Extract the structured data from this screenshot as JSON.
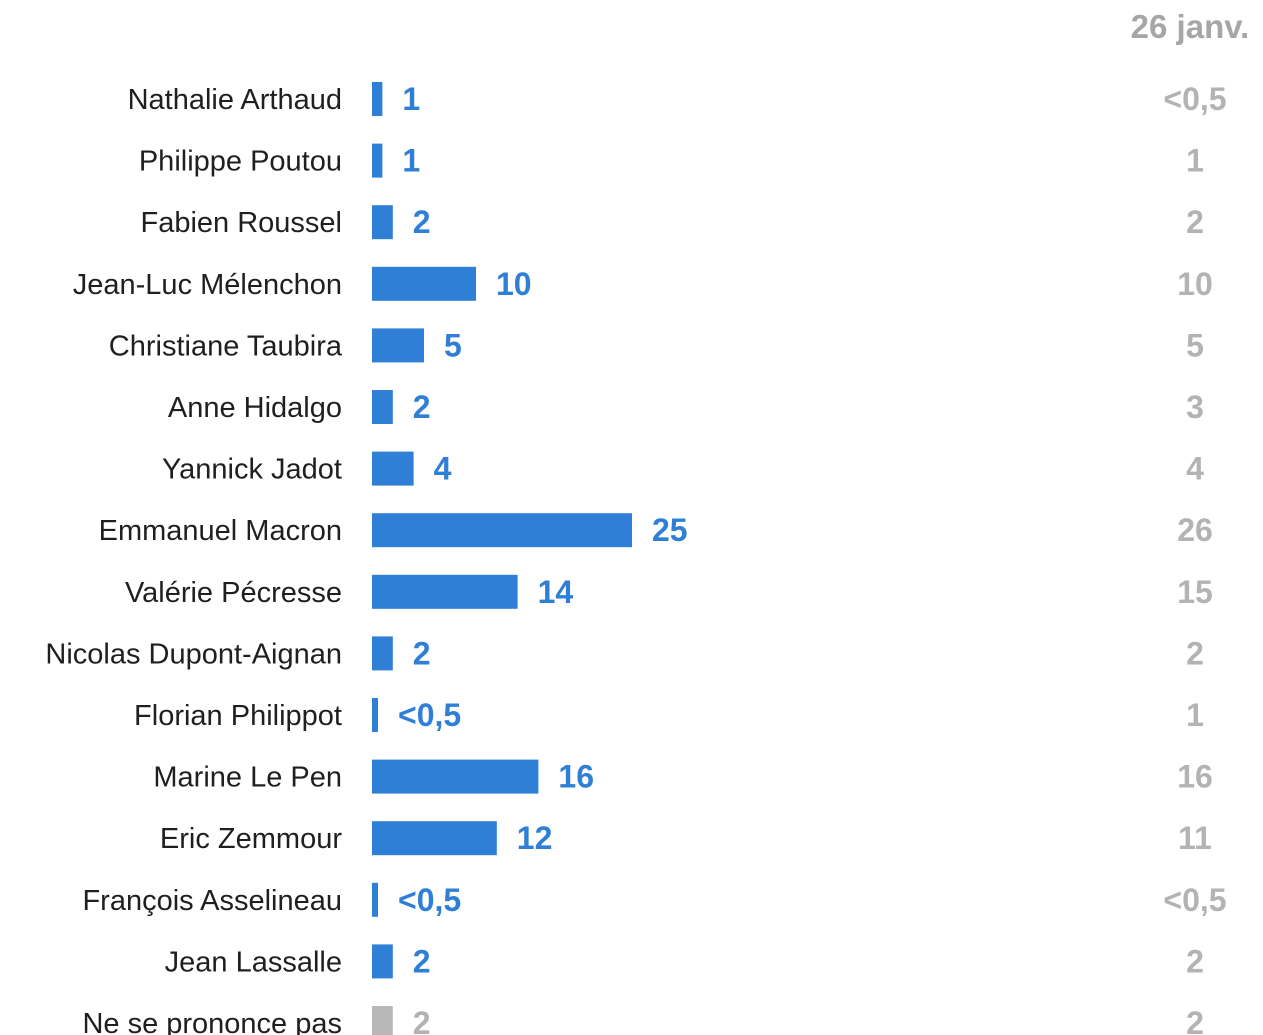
{
  "chart_data": {
    "type": "bar",
    "orientation": "horizontal",
    "comparison_header": "26 janv.",
    "colors": {
      "bar": "#2f7fd6",
      "bar_muted": "#b9b7b6",
      "value_label": "#2f7fd6",
      "value_label_muted": "#b3b3b3",
      "comparison": "#b3b3b3"
    },
    "rows": [
      {
        "name": "Nathalie Arthaud",
        "value": 1,
        "label": "1",
        "previous": "<0,5",
        "muted": false
      },
      {
        "name": "Philippe Poutou",
        "value": 1,
        "label": "1",
        "previous": "1",
        "muted": false
      },
      {
        "name": "Fabien Roussel",
        "value": 2,
        "label": "2",
        "previous": "2",
        "muted": false
      },
      {
        "name": "Jean-Luc Mélenchon",
        "value": 10,
        "label": "10",
        "previous": "10",
        "muted": false
      },
      {
        "name": "Christiane Taubira",
        "value": 5,
        "label": "5",
        "previous": "5",
        "muted": false
      },
      {
        "name": "Anne Hidalgo",
        "value": 2,
        "label": "2",
        "previous": "3",
        "muted": false
      },
      {
        "name": "Yannick Jadot",
        "value": 4,
        "label": "4",
        "previous": "4",
        "muted": false
      },
      {
        "name": "Emmanuel Macron",
        "value": 25,
        "label": "25",
        "previous": "26",
        "muted": false
      },
      {
        "name": "Valérie Pécresse",
        "value": 14,
        "label": "14",
        "previous": "15",
        "muted": false
      },
      {
        "name": "Nicolas Dupont-Aignan",
        "value": 2,
        "label": "2",
        "previous": "2",
        "muted": false
      },
      {
        "name": "Florian Philippot",
        "value": 0.3,
        "label": "<0,5",
        "previous": "1",
        "muted": false
      },
      {
        "name": "Marine Le Pen",
        "value": 16,
        "label": "16",
        "previous": "16",
        "muted": false
      },
      {
        "name": "Eric Zemmour",
        "value": 12,
        "label": "12",
        "previous": "11",
        "muted": false
      },
      {
        "name": "François Asselineau",
        "value": 0.4,
        "label": "<0,5",
        "previous": "<0,5",
        "muted": false
      },
      {
        "name": "Jean Lassalle",
        "value": 2,
        "label": "2",
        "previous": "2",
        "muted": false
      },
      {
        "name": "Ne se prononce pas",
        "value": 2,
        "label": "2",
        "previous": "2",
        "muted": true
      }
    ]
  }
}
